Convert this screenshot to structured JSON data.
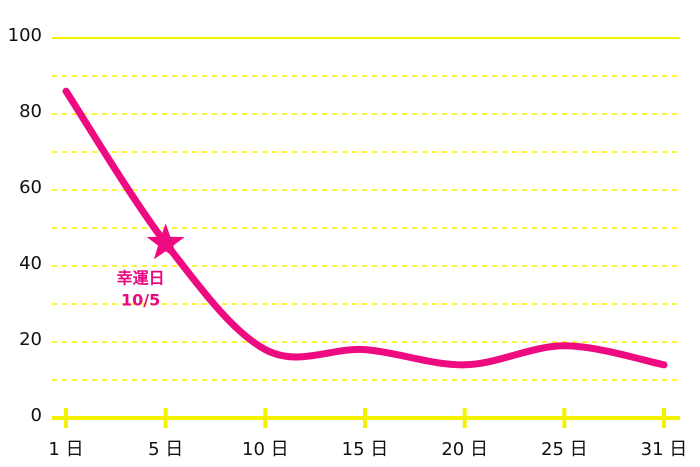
{
  "chart_data": {
    "type": "line",
    "categories": [
      "1 日",
      "5 日",
      "10 日",
      "15 日",
      "20 日",
      "25 日",
      "31 日"
    ],
    "series": [
      {
        "color": "#ee0a80",
        "values": [
          86,
          46,
          18,
          18,
          14,
          19,
          14
        ]
      }
    ],
    "ylim": [
      0,
      100
    ],
    "yticks": [
      0,
      20,
      40,
      60,
      80,
      100
    ],
    "minor_yticks": [
      10,
      30,
      50,
      70,
      90
    ],
    "grid": true,
    "grid_color": "#f3f300",
    "annotation": {
      "index": 1,
      "lines": [
        "幸運日",
        "10/5"
      ]
    }
  }
}
